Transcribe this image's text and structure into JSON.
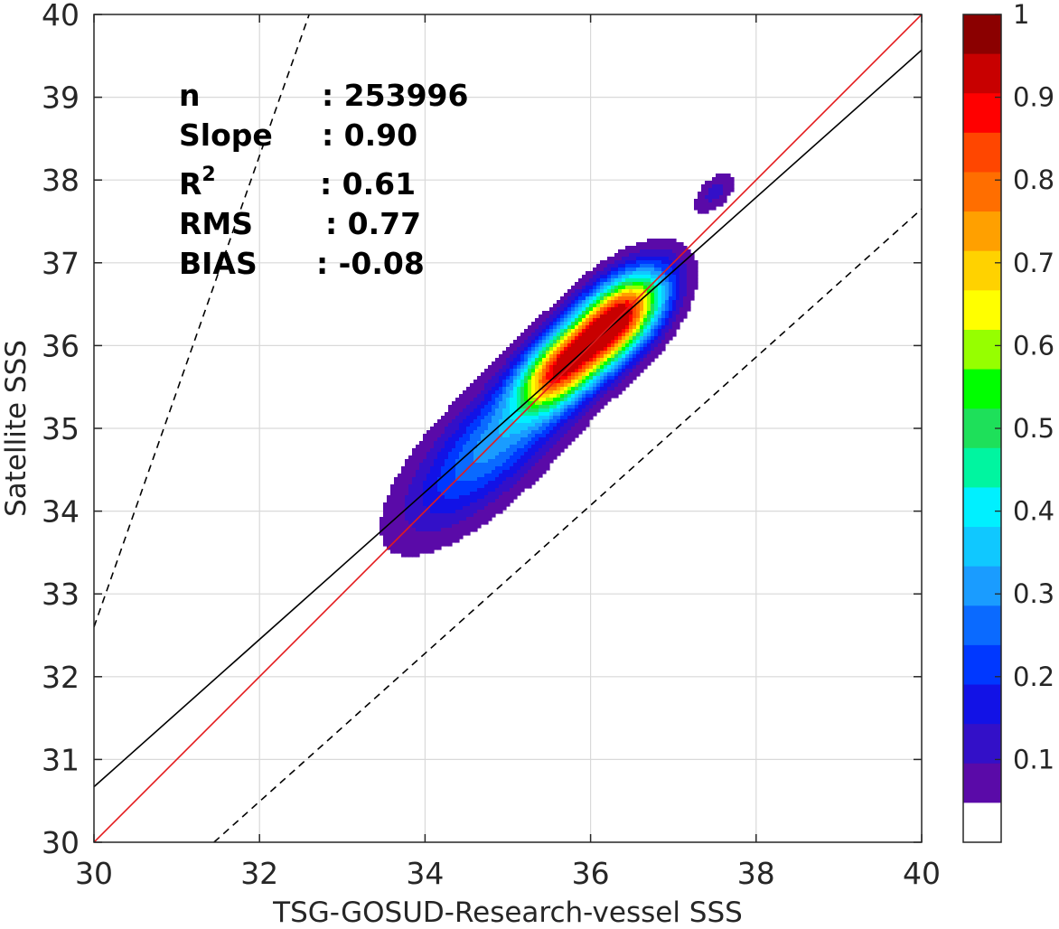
{
  "chart_data": {
    "type": "contour",
    "xlabel": "TSG-GOSUD-Research-vessel SSS",
    "ylabel": "Satellite SSS",
    "xlim": [
      30,
      40
    ],
    "ylim": [
      30,
      40
    ],
    "xticks": [
      "30",
      "32",
      "34",
      "36",
      "38",
      "40"
    ],
    "yticks": [
      "30",
      "31",
      "32",
      "33",
      "34",
      "35",
      "36",
      "37",
      "38",
      "39",
      "40"
    ],
    "grid": true,
    "stats": [
      {
        "label": "n",
        "value": ": 253996"
      },
      {
        "label": "Slope",
        "value": ": 0.90"
      },
      {
        "label": "R2",
        "value": ": 0.61"
      },
      {
        "label": "RMS",
        "value": ": 0.77"
      },
      {
        "label": "BIAS",
        "value": ": -0.08"
      }
    ],
    "lines": {
      "one_to_one": {
        "x": [
          30,
          40
        ],
        "y": [
          30,
          40
        ],
        "color": "#e31a1c"
      },
      "regression": {
        "x": [
          30,
          40
        ],
        "y": [
          30.67,
          39.57
        ],
        "color": "#000000"
      },
      "upper_bound": {
        "x": [
          30,
          32.6
        ],
        "y": [
          32.6,
          40
        ],
        "offset": 2.6,
        "style": "dashed"
      },
      "lower_bound": {
        "x": [
          31.45,
          40
        ],
        "y": [
          30,
          37.65
        ],
        "offset": -1.45,
        "style": "dashed"
      }
    },
    "density_peak": {
      "x": 36.3,
      "y": 36.3
    },
    "density_secondary_peak": {
      "x": 35.6,
      "y": 35.7
    },
    "colorbar": {
      "ticks": [
        "0.1",
        "0.2",
        "0.3",
        "0.4",
        "0.5",
        "0.6",
        "0.7",
        "0.8",
        "0.9",
        "1"
      ],
      "levels": [
        0,
        0.05,
        0.1,
        0.15,
        0.2,
        0.25,
        0.3,
        0.35,
        0.4,
        0.45,
        0.5,
        0.55,
        0.6,
        0.65,
        0.7,
        0.75,
        0.8,
        0.85,
        0.9,
        0.95,
        1
      ],
      "colors": [
        "#ffffff",
        "#5a0aa8",
        "#3310c8",
        "#1212e6",
        "#0038ff",
        "#0a6aff",
        "#1a9cff",
        "#10c8ff",
        "#00f0ff",
        "#00f5a0",
        "#1ee05a",
        "#00ff00",
        "#96ff00",
        "#ffff00",
        "#ffd200",
        "#ffa000",
        "#ff6e00",
        "#ff4600",
        "#ff0000",
        "#c80000",
        "#8b0000"
      ]
    }
  }
}
